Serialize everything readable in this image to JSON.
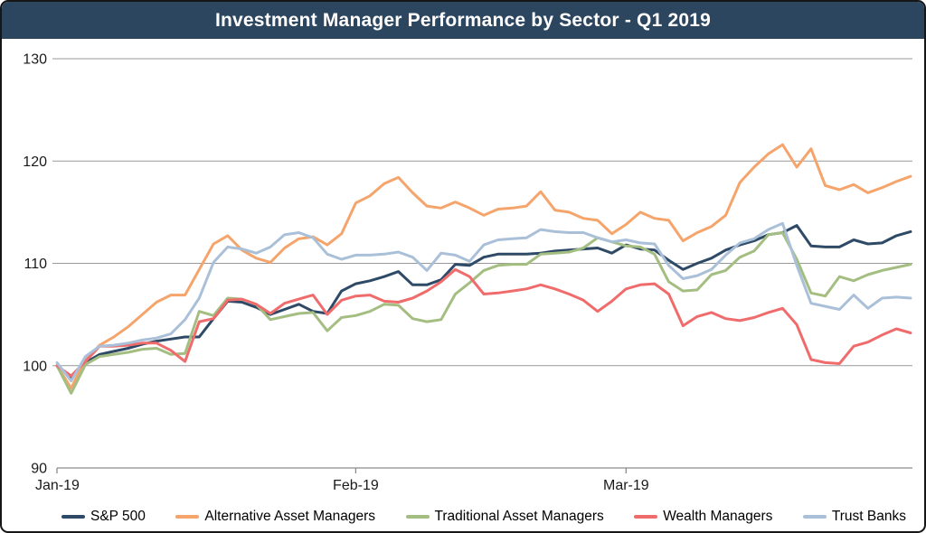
{
  "header": {
    "title": "Investment Manager Performance by Sector - Q1 2019",
    "bg_color": "#2C4660",
    "text_color": "#FFFFFF"
  },
  "colors": {
    "gridline": "#999999",
    "axis_line": "#8C8C8C",
    "tick_text": "#1A1A1A",
    "background": "#FFFFFF",
    "border": "#161616"
  },
  "chart_data": {
    "type": "line",
    "title": "Investment Manager Performance by Sector - Q1 2019",
    "xlabel": "",
    "ylabel": "",
    "x_axis": {
      "tick_labels": [
        "Jan-19",
        "Feb-19",
        "Mar-19"
      ],
      "tick_point_index": [
        0,
        21,
        40
      ],
      "num_points": 61
    },
    "y_axis": {
      "ticks": [
        90,
        100,
        110,
        120,
        130
      ],
      "range": [
        90,
        130
      ],
      "gridlines": true
    },
    "legend_position": "bottom",
    "series": [
      {
        "name": "S&P 500",
        "color": "#2E4A66",
        "values": [
          100.0,
          98.9,
          100.3,
          101.1,
          101.4,
          101.7,
          102.1,
          102.4,
          102.6,
          102.8,
          102.8,
          104.6,
          106.3,
          106.2,
          105.7,
          105.0,
          105.5,
          106.0,
          105.3,
          105.1,
          107.3,
          108.0,
          108.3,
          108.7,
          109.2,
          107.9,
          107.9,
          108.4,
          109.9,
          109.8,
          110.6,
          110.9,
          110.9,
          110.9,
          111.0,
          111.2,
          111.3,
          111.4,
          111.5,
          111.0,
          111.8,
          111.4,
          111.3,
          110.3,
          109.4,
          110.0,
          110.5,
          111.3,
          111.8,
          112.2,
          112.8,
          113.0,
          113.7,
          111.7,
          111.6,
          111.6,
          112.3,
          111.9,
          112.0,
          112.7,
          113.1
        ]
      },
      {
        "name": "Alternative Asset Managers",
        "color": "#F5A46B",
        "values": [
          100.0,
          97.8,
          100.6,
          102.0,
          102.8,
          103.8,
          105.0,
          106.2,
          106.9,
          106.9,
          109.4,
          111.9,
          112.7,
          111.3,
          110.5,
          110.1,
          111.5,
          112.4,
          112.6,
          111.8,
          112.9,
          115.9,
          116.6,
          117.8,
          118.4,
          116.9,
          115.6,
          115.4,
          116.0,
          115.4,
          114.7,
          115.3,
          115.4,
          115.6,
          117.0,
          115.2,
          115.0,
          114.4,
          114.2,
          112.9,
          113.8,
          115.0,
          114.4,
          114.2,
          112.2,
          113.0,
          113.6,
          114.7,
          117.9,
          119.4,
          120.7,
          121.6,
          119.4,
          121.2,
          117.6,
          117.2,
          117.7,
          116.9,
          117.4,
          118.0,
          118.5
        ]
      },
      {
        "name": "Traditional Asset Managers",
        "color": "#A4BE82",
        "values": [
          100.0,
          97.3,
          100.1,
          100.9,
          101.1,
          101.3,
          101.6,
          101.7,
          101.1,
          101.2,
          105.3,
          104.9,
          106.6,
          106.5,
          106.0,
          104.5,
          104.8,
          105.1,
          105.2,
          103.4,
          104.7,
          104.9,
          105.3,
          106.0,
          105.9,
          104.6,
          104.3,
          104.5,
          107.0,
          108.1,
          109.3,
          109.8,
          109.9,
          109.9,
          110.9,
          111.0,
          111.1,
          111.5,
          112.5,
          112.1,
          111.7,
          111.6,
          110.9,
          108.2,
          107.3,
          107.4,
          108.9,
          109.3,
          110.6,
          111.2,
          112.8,
          113.0,
          110.4,
          107.1,
          106.8,
          108.7,
          108.3,
          108.9,
          109.3,
          109.6,
          109.9
        ]
      },
      {
        "name": "Wealth Managers",
        "color": "#F06C6C",
        "values": [
          100.0,
          99.0,
          100.4,
          101.9,
          101.9,
          102.0,
          102.2,
          102.2,
          101.5,
          100.4,
          104.3,
          104.6,
          106.4,
          106.5,
          106.0,
          105.1,
          106.1,
          106.5,
          106.9,
          105.0,
          106.4,
          106.8,
          106.9,
          106.3,
          106.2,
          106.6,
          107.3,
          108.2,
          109.4,
          108.7,
          107.0,
          107.1,
          107.3,
          107.5,
          107.9,
          107.5,
          107.0,
          106.4,
          105.3,
          106.3,
          107.5,
          107.9,
          108.0,
          107.0,
          103.9,
          104.8,
          105.2,
          104.6,
          104.4,
          104.7,
          105.2,
          105.6,
          104.0,
          100.6,
          100.3,
          100.2,
          101.9,
          102.3,
          103.0,
          103.6,
          103.2
        ]
      },
      {
        "name": "Trust Banks",
        "color": "#AAC0D8",
        "values": [
          100.3,
          98.5,
          100.9,
          101.9,
          102.0,
          102.2,
          102.5,
          102.7,
          103.1,
          104.5,
          106.6,
          110.1,
          111.6,
          111.4,
          111.0,
          111.6,
          112.8,
          113.0,
          112.5,
          110.9,
          110.4,
          110.8,
          110.8,
          110.9,
          111.1,
          110.6,
          109.3,
          111.0,
          110.8,
          110.2,
          111.8,
          112.3,
          112.4,
          112.5,
          113.3,
          113.1,
          113.0,
          113.0,
          112.5,
          112.1,
          112.3,
          112.0,
          111.9,
          109.8,
          108.5,
          108.8,
          109.4,
          110.8,
          112.0,
          112.4,
          113.3,
          113.9,
          109.8,
          106.1,
          105.8,
          105.5,
          106.9,
          105.6,
          106.6,
          106.7,
          106.6
        ]
      }
    ]
  },
  "legend": {
    "items": [
      {
        "label": "S&P 500",
        "color": "#2E4A66"
      },
      {
        "label": "Alternative Asset Managers",
        "color": "#F5A46B"
      },
      {
        "label": "Traditional Asset Managers",
        "color": "#A4BE82"
      },
      {
        "label": "Wealth Managers",
        "color": "#F06C6C"
      },
      {
        "label": "Trust Banks",
        "color": "#AAC0D8"
      }
    ]
  }
}
